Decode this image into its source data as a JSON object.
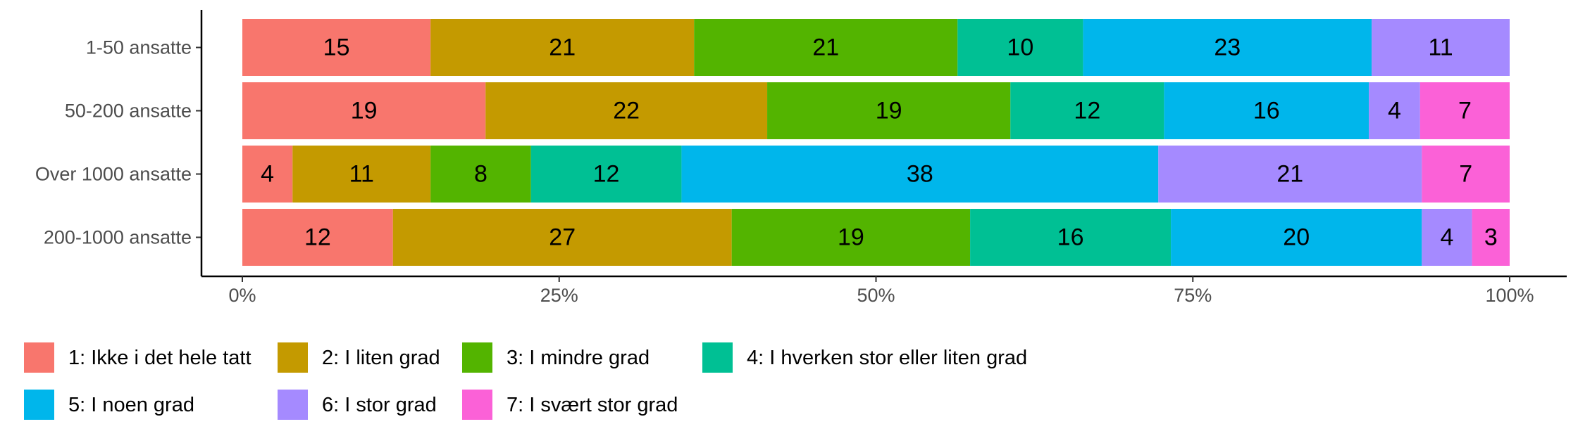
{
  "chart_data": {
    "type": "bar",
    "orientation": "horizontal",
    "stacked": true,
    "normalized": true,
    "categories": [
      "1-50 ansatte",
      "50-200 ansatte",
      "Over 1000 ansatte",
      "200-1000 ansatte"
    ],
    "x_ticks": [
      "0%",
      "25%",
      "50%",
      "75%",
      "100%"
    ],
    "xlim": [
      0,
      1
    ],
    "grid": false,
    "legend_position": "bottom",
    "series": [
      {
        "name": "1: Ikke i det hele tatt",
        "color": "#F8766D",
        "values": [
          15,
          19,
          4,
          12
        ]
      },
      {
        "name": "2: I liten grad",
        "color": "#C49A00",
        "values": [
          21,
          22,
          11,
          27
        ]
      },
      {
        "name": "3: I mindre grad",
        "color": "#53B400",
        "values": [
          21,
          19,
          8,
          19
        ]
      },
      {
        "name": "4: I hverken stor eller liten grad",
        "color": "#00C094",
        "values": [
          10,
          12,
          12,
          16
        ]
      },
      {
        "name": "5: I noen grad",
        "color": "#00B6EB",
        "values": [
          23,
          16,
          38,
          20
        ]
      },
      {
        "name": "6: I stor grad",
        "color": "#A58AFF",
        "values": [
          11,
          4,
          21,
          4
        ]
      },
      {
        "name": "7: I svært stor grad",
        "color": "#FB61D7",
        "values": [
          0,
          7,
          7,
          3
        ]
      }
    ]
  }
}
